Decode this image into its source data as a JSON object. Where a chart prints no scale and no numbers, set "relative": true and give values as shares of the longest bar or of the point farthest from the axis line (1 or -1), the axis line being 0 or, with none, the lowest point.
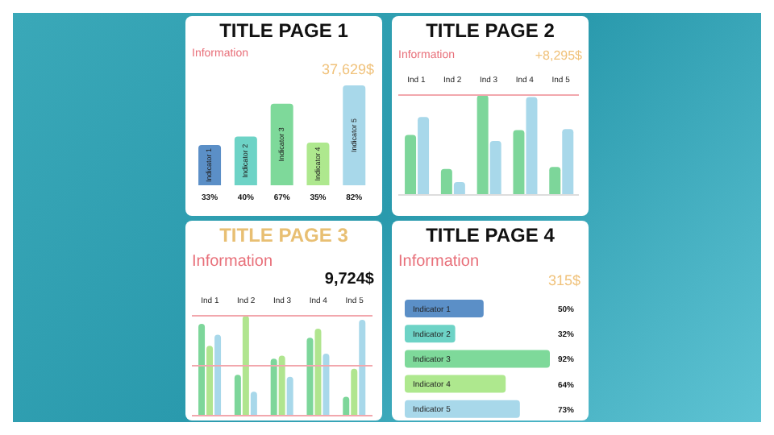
{
  "chart_data": [
    {
      "type": "bar",
      "title": "TITLE PAGE 1",
      "subtitle": "Information",
      "annotations": [
        "37,629$"
      ],
      "categories": [
        "Indicator 1",
        "Indicator 2",
        "Indicator 3",
        "Indicator 4",
        "Indicator 5"
      ],
      "values": [
        33,
        40,
        67,
        35,
        82
      ],
      "value_labels": [
        "33%",
        "40%",
        "67%",
        "35%",
        "82%"
      ],
      "colors": [
        "#5b8fc7",
        "#6dd3c6",
        "#7ed99a",
        "#aee88e",
        "#a8d8ea"
      ]
    },
    {
      "type": "bar",
      "title": "TITLE PAGE 2",
      "subtitle": "Information",
      "annotations": [
        "+8,295$"
      ],
      "relative": true,
      "ref_lines": [
        {
          "axis": "y",
          "value": 0,
          "color": "#dddddd"
        }
      ],
      "categories": [
        "Ind 1",
        "Ind 2",
        "Ind 3",
        "Ind 4",
        "Ind 5"
      ],
      "series": [
        {
          "color": "#7dd69a",
          "values": [
            0.6,
            0.26,
            1,
            0.65,
            0.28
          ]
        },
        {
          "color": "#a8d8ea",
          "values": [
            0.78,
            0.13,
            0.54,
            0.98,
            0.66
          ]
        }
      ]
    },
    {
      "type": "bar",
      "title": "TITLE PAGE 3",
      "subtitle": "Information",
      "annotations": [
        "9,724$"
      ],
      "relative": true,
      "ref_lines": [
        {
          "axis": "y",
          "value": 0,
          "color": "#f2a7ad"
        },
        {
          "axis": "y",
          "value": 0.5,
          "color": "#f2a7ad"
        }
      ],
      "categories": [
        "Ind 1",
        "Ind 2",
        "Ind 3",
        "Ind 4",
        "Ind 5"
      ],
      "series": [
        {
          "color": "#7dd69a",
          "values": [
            0.92,
            0.41,
            0.57,
            0.78,
            0.19
          ]
        },
        {
          "color": "#b0e58f",
          "values": [
            0.7,
            1,
            0.6,
            0.87,
            0.47
          ]
        },
        {
          "color": "#a8d8ea",
          "values": [
            0.81,
            0.24,
            0.39,
            0.62,
            0.96
          ]
        }
      ]
    },
    {
      "type": "bar",
      "orientation": "horizontal",
      "title": "TITLE PAGE 4",
      "subtitle": "Information",
      "annotations": [
        "315$"
      ],
      "categories": [
        "Indicator 1",
        "Indicator 2",
        "Indicator 3",
        "Indicator 4",
        "Indicator 5"
      ],
      "values": [
        50,
        32,
        92,
        64,
        73
      ],
      "value_labels": [
        "50%",
        "32%",
        "92%",
        "64%",
        "73%"
      ],
      "colors": [
        "#5b8fc7",
        "#6dd3c6",
        "#7ed99a",
        "#aee88e",
        "#a8d8ea"
      ]
    }
  ]
}
